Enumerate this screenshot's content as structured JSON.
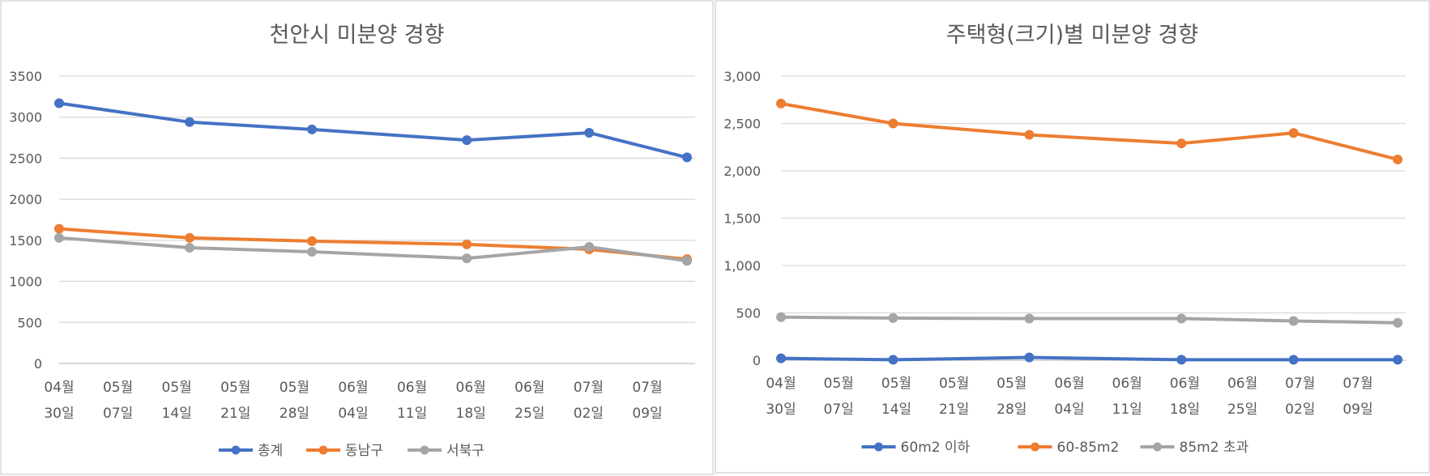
{
  "chart_data": [
    {
      "type": "line",
      "title": "천안시 미분양 경향",
      "xlabel": "",
      "ylabel": "",
      "ylim": [
        0,
        3500
      ],
      "y_ticks": [
        "0",
        "500",
        "1000",
        "1500",
        "2000",
        "2500",
        "3000",
        "3500"
      ],
      "y_tick_values": [
        0,
        500,
        1000,
        1500,
        2000,
        2500,
        3000,
        3500
      ],
      "x_date_range": [
        "04월 30일",
        "07월 16일"
      ],
      "x_tick_labels": [
        {
          "top": "04월",
          "bottom": "30일"
        },
        {
          "top": "05월",
          "bottom": "07일"
        },
        {
          "top": "05월",
          "bottom": "14일"
        },
        {
          "top": "05월",
          "bottom": "21일"
        },
        {
          "top": "05월",
          "bottom": "28일"
        },
        {
          "top": "06월",
          "bottom": "04일"
        },
        {
          "top": "06월",
          "bottom": "11일"
        },
        {
          "top": "06월",
          "bottom": "18일"
        },
        {
          "top": "06월",
          "bottom": "25일"
        },
        {
          "top": "07월",
          "bottom": "02일"
        },
        {
          "top": "07월",
          "bottom": "09일"
        }
      ],
      "x": [
        0,
        16,
        31,
        50,
        65,
        77
      ],
      "x_unit": "days since 04월 30일",
      "series": [
        {
          "name": "총계",
          "color": "#4472c4",
          "values": [
            3170,
            2940,
            2850,
            2720,
            2810,
            2510
          ]
        },
        {
          "name": "동남구",
          "color": "#ed7d31",
          "values": [
            1640,
            1530,
            1490,
            1450,
            1390,
            1270
          ]
        },
        {
          "name": "서북구",
          "color": "#a5a5a5",
          "values": [
            1530,
            1410,
            1360,
            1280,
            1420,
            1250
          ]
        }
      ],
      "legend_position": "bottom",
      "grid": true
    },
    {
      "type": "line",
      "title": "주택형(크기)별 미분양 경향",
      "xlabel": "",
      "ylabel": "",
      "ylim": [
        0,
        3000
      ],
      "y_ticks": [
        "0",
        "500",
        "1,000",
        "1,500",
        "2,000",
        "2,500",
        "3,000"
      ],
      "y_tick_values": [
        0,
        500,
        1000,
        1500,
        2000,
        2500,
        3000
      ],
      "x_date_range": [
        "04월 30일",
        "07월 16일"
      ],
      "x_tick_labels": [
        {
          "top": "04월",
          "bottom": "30일"
        },
        {
          "top": "05월",
          "bottom": "07일"
        },
        {
          "top": "05월",
          "bottom": "14일"
        },
        {
          "top": "05월",
          "bottom": "21일"
        },
        {
          "top": "05월",
          "bottom": "28일"
        },
        {
          "top": "06월",
          "bottom": "04일"
        },
        {
          "top": "06월",
          "bottom": "11일"
        },
        {
          "top": "06월",
          "bottom": "18일"
        },
        {
          "top": "06월",
          "bottom": "25일"
        },
        {
          "top": "07월",
          "bottom": "02일"
        },
        {
          "top": "07월",
          "bottom": "09일"
        }
      ],
      "x": [
        0,
        14,
        31,
        50,
        64,
        77
      ],
      "x_unit": "days since 04월 30일",
      "series": [
        {
          "name": "60m2 이하",
          "color": "#4472c4",
          "values": [
            20,
            5,
            30,
            5,
            5,
            5
          ]
        },
        {
          "name": "60-85m2",
          "color": "#ed7d31",
          "values": [
            2710,
            2500,
            2380,
            2290,
            2400,
            2120
          ]
        },
        {
          "name": "85m2 초과",
          "color": "#a5a5a5",
          "values": [
            455,
            445,
            440,
            440,
            415,
            395
          ]
        }
      ],
      "legend_position": "bottom",
      "grid": true
    }
  ]
}
